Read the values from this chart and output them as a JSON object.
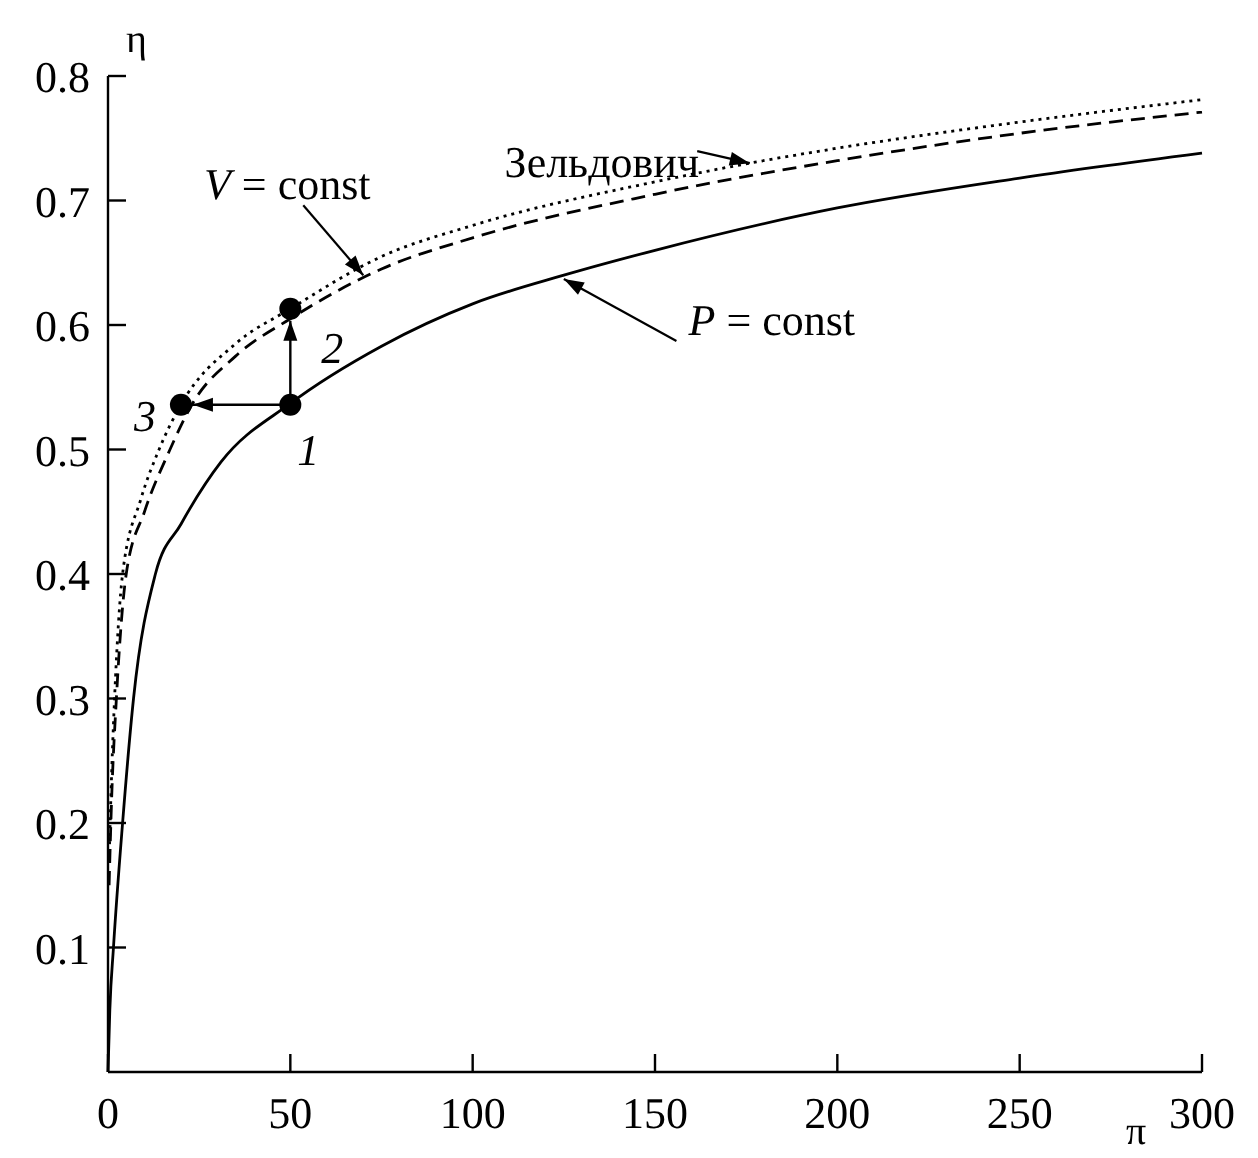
{
  "chart_data": {
    "type": "line",
    "xlabel": "π",
    "ylabel": "η",
    "xlim": [
      0,
      300
    ],
    "ylim": [
      0,
      0.8
    ],
    "xticks": [
      0,
      50,
      100,
      150,
      200,
      250,
      300
    ],
    "yticks": [
      0.1,
      0.2,
      0.3,
      0.4,
      0.5,
      0.6,
      0.7,
      0.8
    ],
    "grid": false,
    "series": [
      {
        "color": "#000000",
        "line_style": "solid",
        "x": [
          0,
          0.5,
          1.5,
          4,
          7,
          13,
          20,
          31,
          50,
          75,
          100,
          125,
          150,
          200,
          250,
          300
        ],
        "values": [
          0,
          0.05,
          0.1,
          0.2,
          0.3,
          0.4,
          0.44,
          0.49,
          0.537,
          0.583,
          0.617,
          0.64,
          0.66,
          0.694,
          0.718,
          0.738
        ]
      },
      {
        "color": "#000000",
        "line_style": "dashed",
        "x": [
          0.3,
          1,
          2.3,
          5,
          10,
          17,
          23,
          35,
          50,
          75,
          100,
          150,
          200,
          250,
          300
        ],
        "values": [
          0.15,
          0.22,
          0.3,
          0.4,
          0.45,
          0.5,
          0.536,
          0.575,
          0.605,
          0.645,
          0.67,
          0.705,
          0.732,
          0.754,
          0.771
        ]
      },
      {
        "color": "#000000",
        "line_style": "dotted",
        "x": [
          0.3,
          1,
          1.8,
          4,
          9,
          14,
          20,
          35,
          50,
          75,
          100,
          150,
          176,
          200,
          250,
          300
        ],
        "values": [
          0.17,
          0.24,
          0.3,
          0.4,
          0.46,
          0.5,
          0.536,
          0.585,
          0.613,
          0.655,
          0.68,
          0.715,
          0.73,
          0.742,
          0.763,
          0.781
        ]
      },
      {
        "type": "scatter",
        "color": "#000000",
        "marker": "circle",
        "x": [
          50,
          50,
          20
        ],
        "values": [
          0.536,
          0.613,
          0.536
        ]
      }
    ],
    "annotations": [
      {
        "text": "Зельдович",
        "x": 176,
        "y": 0.73
      },
      {
        "text": "V = const",
        "x": 70,
        "y": 0.64
      },
      {
        "text": "P = const",
        "x": 125,
        "y": 0.637
      },
      {
        "text": "1",
        "x": 50,
        "y": 0.536
      },
      {
        "text": "2",
        "x": 50,
        "y": 0.613
      },
      {
        "text": "3",
        "x": 20,
        "y": 0.536
      }
    ]
  }
}
